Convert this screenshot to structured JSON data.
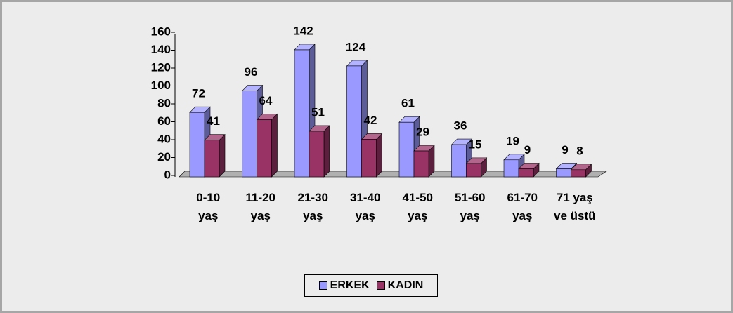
{
  "chart_data": {
    "type": "bar3d",
    "categories": [
      "0-10 yaş",
      "11-20 yaş",
      "21-30 yaş",
      "31-40 yaş",
      "41-50 yaş",
      "51-60 yaş",
      "61-70 yaş",
      "71 yaş ve üstü"
    ],
    "series": [
      {
        "name": "ERKEK",
        "color": "#9999ff",
        "values": [
          72,
          96,
          142,
          124,
          61,
          36,
          19,
          9
        ]
      },
      {
        "name": "KADIN",
        "color": "#993366",
        "values": [
          41,
          64,
          51,
          42,
          29,
          15,
          9,
          8
        ]
      }
    ],
    "ylim": [
      0,
      160
    ],
    "yticks": [
      0,
      20,
      40,
      60,
      80,
      100,
      120,
      140,
      160
    ],
    "legend": "bottom",
    "value_labels_shown": true
  }
}
